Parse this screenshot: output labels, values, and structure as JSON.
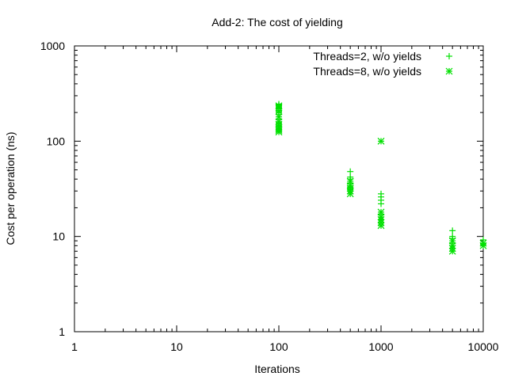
{
  "chart_data": {
    "type": "scatter",
    "title": "Add-2: The cost of yielding",
    "xlabel": "Iterations",
    "ylabel": "Cost per operation (ns)",
    "x_scale": "log",
    "y_scale": "log",
    "xlim": [
      1,
      10000
    ],
    "ylim": [
      1,
      1000
    ],
    "x_ticks": [
      1,
      10,
      100,
      1000,
      10000
    ],
    "y_ticks": [
      1,
      10,
      100,
      1000
    ],
    "x_tick_labels": [
      "1",
      "10",
      "100",
      "1000",
      "10000"
    ],
    "y_tick_labels": [
      "1",
      "10",
      "100",
      "1000"
    ],
    "grid": false,
    "legend_position": "top-right",
    "series": [
      {
        "name": "Threads=2, w/o yields",
        "marker": "plus",
        "color": "#00e000",
        "points": [
          [
            100,
            245
          ],
          [
            100,
            240
          ],
          [
            100,
            230
          ],
          [
            100,
            220
          ],
          [
            100,
            210
          ],
          [
            100,
            200
          ],
          [
            100,
            190
          ],
          [
            100,
            170
          ],
          [
            100,
            155
          ],
          [
            100,
            145
          ],
          [
            500,
            48
          ],
          [
            500,
            42
          ],
          [
            500,
            40
          ],
          [
            500,
            36
          ],
          [
            500,
            33
          ],
          [
            500,
            31
          ],
          [
            1000,
            28
          ],
          [
            1000,
            26
          ],
          [
            1000,
            24
          ],
          [
            1000,
            22
          ],
          [
            1000,
            17
          ],
          [
            1000,
            15
          ],
          [
            5000,
            11.5
          ],
          [
            5000,
            10
          ],
          [
            5000,
            9.5
          ],
          [
            5000,
            8.5
          ],
          [
            10000,
            9.2
          ],
          [
            10000,
            8.3
          ]
        ]
      },
      {
        "name": "Threads=8, w/o yields",
        "marker": "star",
        "color": "#00e000",
        "points": [
          [
            100,
            235
          ],
          [
            100,
            225
          ],
          [
            100,
            205
          ],
          [
            100,
            180
          ],
          [
            100,
            160
          ],
          [
            100,
            150
          ],
          [
            100,
            140
          ],
          [
            100,
            135
          ],
          [
            100,
            130
          ],
          [
            100,
            125
          ],
          [
            500,
            38
          ],
          [
            500,
            34
          ],
          [
            500,
            32
          ],
          [
            500,
            30
          ],
          [
            500,
            28
          ],
          [
            1000,
            100
          ],
          [
            1000,
            18
          ],
          [
            1000,
            16
          ],
          [
            1000,
            15
          ],
          [
            1000,
            14
          ],
          [
            1000,
            13
          ],
          [
            5000,
            9
          ],
          [
            5000,
            8
          ],
          [
            5000,
            7.5
          ],
          [
            5000,
            7
          ],
          [
            10000,
            8.5
          ],
          [
            10000,
            8
          ]
        ]
      }
    ]
  }
}
